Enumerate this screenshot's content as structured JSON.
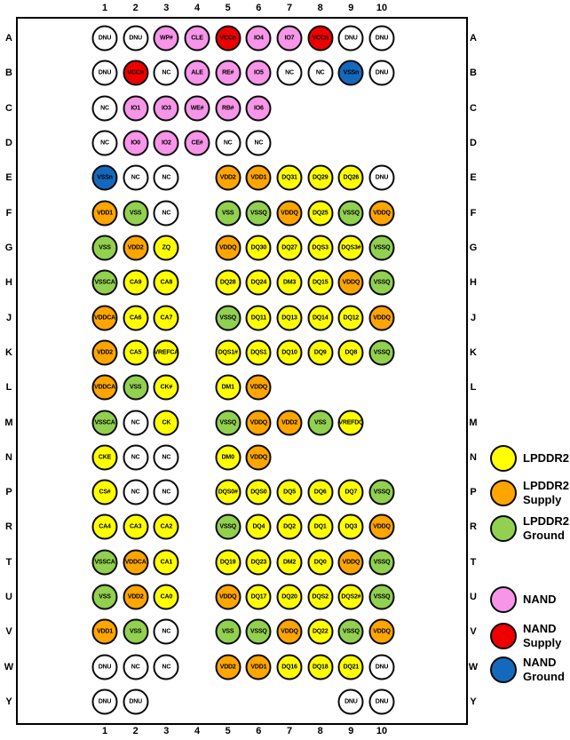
{
  "colors": {
    "lpddr2": "#FFFF00",
    "lpddr2_supply": "#FFA500",
    "lpddr2_ground": "#92D050",
    "nand": "#F795E8",
    "nand_supply": "#EE0000",
    "nand_ground": "#1569BD",
    "nc": "#FFFFFF",
    "dnu": "#FFFFFF"
  },
  "diagram": {
    "column_labels": [
      "1",
      "2",
      "3",
      "4",
      "5",
      "6",
      "7",
      "8",
      "9",
      "10"
    ],
    "rows": [
      {
        "label": "A",
        "cells": [
          {
            "name": "DNU",
            "type": "dnu"
          },
          {
            "name": "DNU",
            "type": "dnu"
          },
          {
            "name": "WP#",
            "type": "nand"
          },
          {
            "name": "CLE",
            "type": "nand"
          },
          {
            "name": "VCCn",
            "type": "nand_supply"
          },
          {
            "name": "IO4",
            "type": "nand"
          },
          {
            "name": "IO7",
            "type": "nand"
          },
          {
            "name": "VCCn",
            "type": "nand_supply"
          },
          {
            "name": "DNU",
            "type": "dnu"
          },
          {
            "name": "DNU",
            "type": "dnu"
          }
        ]
      },
      {
        "label": "B",
        "cells": [
          {
            "name": "DNU",
            "type": "dnu"
          },
          {
            "name": "VCCn",
            "type": "nand_supply"
          },
          {
            "name": "NC",
            "type": "nc"
          },
          {
            "name": "ALE",
            "type": "nand"
          },
          {
            "name": "RE#",
            "type": "nand"
          },
          {
            "name": "IO5",
            "type": "nand"
          },
          {
            "name": "NC",
            "type": "nc"
          },
          {
            "name": "NC",
            "type": "nc"
          },
          {
            "name": "VSSn",
            "type": "nand_ground"
          },
          {
            "name": "DNU",
            "type": "dnu"
          }
        ]
      },
      {
        "label": "C",
        "cells": [
          {
            "name": "NC",
            "type": "nc"
          },
          {
            "name": "IO1",
            "type": "nand"
          },
          {
            "name": "IO3",
            "type": "nand"
          },
          {
            "name": "WE#",
            "type": "nand"
          },
          {
            "name": "RB#",
            "type": "nand"
          },
          {
            "name": "IO6",
            "type": "nand"
          },
          null,
          null,
          null,
          null
        ]
      },
      {
        "label": "D",
        "cells": [
          {
            "name": "NC",
            "type": "nc"
          },
          {
            "name": "IO0",
            "type": "nand"
          },
          {
            "name": "IO2",
            "type": "nand"
          },
          {
            "name": "CE#",
            "type": "nand"
          },
          {
            "name": "NC",
            "type": "nc"
          },
          {
            "name": "NC",
            "type": "nc"
          },
          null,
          null,
          null,
          null
        ]
      },
      {
        "label": "E",
        "cells": [
          {
            "name": "VSSn",
            "type": "nand_ground"
          },
          {
            "name": "NC",
            "type": "nc"
          },
          {
            "name": "NC",
            "type": "nc"
          },
          null,
          {
            "name": "VDD2",
            "type": "lpddr2_supply"
          },
          {
            "name": "VDD1",
            "type": "lpddr2_supply"
          },
          {
            "name": "DQ31",
            "type": "lpddr2"
          },
          {
            "name": "DQ29",
            "type": "lpddr2"
          },
          {
            "name": "DQ26",
            "type": "lpddr2"
          },
          {
            "name": "DNU",
            "type": "dnu"
          }
        ]
      },
      {
        "label": "F",
        "cells": [
          {
            "name": "VDD1",
            "type": "lpddr2_supply"
          },
          {
            "name": "VSS",
            "type": "lpddr2_ground"
          },
          {
            "name": "NC",
            "type": "nc"
          },
          null,
          {
            "name": "VSS",
            "type": "lpddr2_ground"
          },
          {
            "name": "VSSQ",
            "type": "lpddr2_ground"
          },
          {
            "name": "VDDQ",
            "type": "lpddr2_supply"
          },
          {
            "name": "DQ25",
            "type": "lpddr2"
          },
          {
            "name": "VSSQ",
            "type": "lpddr2_ground"
          },
          {
            "name": "VDDQ",
            "type": "lpddr2_supply"
          }
        ]
      },
      {
        "label": "G",
        "cells": [
          {
            "name": "VSS",
            "type": "lpddr2_ground"
          },
          {
            "name": "VDD2",
            "type": "lpddr2_supply"
          },
          {
            "name": "ZQ",
            "type": "lpddr2"
          },
          null,
          {
            "name": "VDDQ",
            "type": "lpddr2_supply"
          },
          {
            "name": "DQ30",
            "type": "lpddr2"
          },
          {
            "name": "DQ27",
            "type": "lpddr2"
          },
          {
            "name": "DQS3",
            "type": "lpddr2"
          },
          {
            "name": "DQS3#",
            "type": "lpddr2"
          },
          {
            "name": "VSSQ",
            "type": "lpddr2_ground"
          }
        ]
      },
      {
        "label": "H",
        "cells": [
          {
            "name": "VSSCA",
            "type": "lpddr2_ground"
          },
          {
            "name": "CA9",
            "type": "lpddr2"
          },
          {
            "name": "CA8",
            "type": "lpddr2"
          },
          null,
          {
            "name": "DQ28",
            "type": "lpddr2"
          },
          {
            "name": "DQ24",
            "type": "lpddr2"
          },
          {
            "name": "DM3",
            "type": "lpddr2"
          },
          {
            "name": "DQ15",
            "type": "lpddr2"
          },
          {
            "name": "VDDQ",
            "type": "lpddr2_supply"
          },
          {
            "name": "VSSQ",
            "type": "lpddr2_ground"
          }
        ]
      },
      {
        "label": "J",
        "cells": [
          {
            "name": "VDDCA",
            "type": "lpddr2_supply"
          },
          {
            "name": "CA6",
            "type": "lpddr2"
          },
          {
            "name": "CA7",
            "type": "lpddr2"
          },
          null,
          {
            "name": "VSSQ",
            "type": "lpddr2_ground"
          },
          {
            "name": "DQ11",
            "type": "lpddr2"
          },
          {
            "name": "DQ13",
            "type": "lpddr2"
          },
          {
            "name": "DQ14",
            "type": "lpddr2"
          },
          {
            "name": "DQ12",
            "type": "lpddr2"
          },
          {
            "name": "VDDQ",
            "type": "lpddr2_supply"
          }
        ]
      },
      {
        "label": "K",
        "cells": [
          {
            "name": "VDD2",
            "type": "lpddr2_supply"
          },
          {
            "name": "CA5",
            "type": "lpddr2"
          },
          {
            "name": "VREFCA",
            "type": "lpddr2"
          },
          null,
          {
            "name": "DQS1#",
            "type": "lpddr2"
          },
          {
            "name": "DQS1",
            "type": "lpddr2"
          },
          {
            "name": "DQ10",
            "type": "lpddr2"
          },
          {
            "name": "DQ9",
            "type": "lpddr2"
          },
          {
            "name": "DQ8",
            "type": "lpddr2"
          },
          {
            "name": "VSSQ",
            "type": "lpddr2_ground"
          }
        ]
      },
      {
        "label": "L",
        "cells": [
          {
            "name": "VDDCA",
            "type": "lpddr2_supply"
          },
          {
            "name": "VSS",
            "type": "lpddr2_ground"
          },
          {
            "name": "CK#",
            "type": "lpddr2"
          },
          null,
          {
            "name": "DM1",
            "type": "lpddr2"
          },
          {
            "name": "VDDQ",
            "type": "lpddr2_supply"
          },
          null,
          null,
          null,
          null
        ]
      },
      {
        "label": "M",
        "cells": [
          {
            "name": "VSSCA",
            "type": "lpddr2_ground"
          },
          {
            "name": "NC",
            "type": "nc"
          },
          {
            "name": "CK",
            "type": "lpddr2"
          },
          null,
          {
            "name": "VSSQ",
            "type": "lpddr2_ground"
          },
          {
            "name": "VDDQ",
            "type": "lpddr2_supply"
          },
          {
            "name": "VDD2",
            "type": "lpddr2_supply"
          },
          {
            "name": "VSS",
            "type": "lpddr2_ground"
          },
          {
            "name": "VREFDQ",
            "type": "lpddr2"
          },
          null
        ]
      },
      {
        "label": "N",
        "cells": [
          {
            "name": "CKE",
            "type": "lpddr2"
          },
          {
            "name": "NC",
            "type": "nc"
          },
          {
            "name": "NC",
            "type": "nc"
          },
          null,
          {
            "name": "DM0",
            "type": "lpddr2"
          },
          {
            "name": "VDDQ",
            "type": "lpddr2_supply"
          },
          null,
          null,
          null,
          null
        ]
      },
      {
        "label": "P",
        "cells": [
          {
            "name": "CS#",
            "type": "lpddr2"
          },
          {
            "name": "NC",
            "type": "nc"
          },
          {
            "name": "NC",
            "type": "nc"
          },
          null,
          {
            "name": "DQS0#",
            "type": "lpddr2"
          },
          {
            "name": "DQS0",
            "type": "lpddr2"
          },
          {
            "name": "DQ5",
            "type": "lpddr2"
          },
          {
            "name": "DQ6",
            "type": "lpddr2"
          },
          {
            "name": "DQ7",
            "type": "lpddr2"
          },
          {
            "name": "VSSQ",
            "type": "lpddr2_ground"
          }
        ]
      },
      {
        "label": "R",
        "cells": [
          {
            "name": "CA4",
            "type": "lpddr2"
          },
          {
            "name": "CA3",
            "type": "lpddr2"
          },
          {
            "name": "CA2",
            "type": "lpddr2"
          },
          null,
          {
            "name": "VSSQ",
            "type": "lpddr2_ground"
          },
          {
            "name": "DQ4",
            "type": "lpddr2"
          },
          {
            "name": "DQ2",
            "type": "lpddr2"
          },
          {
            "name": "DQ1",
            "type": "lpddr2"
          },
          {
            "name": "DQ3",
            "type": "lpddr2"
          },
          {
            "name": "VDDQ",
            "type": "lpddr2_supply"
          }
        ]
      },
      {
        "label": "T",
        "cells": [
          {
            "name": "VSSCA",
            "type": "lpddr2_ground"
          },
          {
            "name": "VDDCA",
            "type": "lpddr2_supply"
          },
          {
            "name": "CA1",
            "type": "lpddr2"
          },
          null,
          {
            "name": "DQ19",
            "type": "lpddr2"
          },
          {
            "name": "DQ23",
            "type": "lpddr2"
          },
          {
            "name": "DM2",
            "type": "lpddr2"
          },
          {
            "name": "DQ0",
            "type": "lpddr2"
          },
          {
            "name": "VDDQ",
            "type": "lpddr2_supply"
          },
          {
            "name": "VSSQ",
            "type": "lpddr2_ground"
          }
        ]
      },
      {
        "label": "U",
        "cells": [
          {
            "name": "VSS",
            "type": "lpddr2_ground"
          },
          {
            "name": "VDD2",
            "type": "lpddr2_supply"
          },
          {
            "name": "CA0",
            "type": "lpddr2"
          },
          null,
          {
            "name": "VDDQ",
            "type": "lpddr2_supply"
          },
          {
            "name": "DQ17",
            "type": "lpddr2"
          },
          {
            "name": "DQ20",
            "type": "lpddr2"
          },
          {
            "name": "DQS2",
            "type": "lpddr2"
          },
          {
            "name": "DQS2#",
            "type": "lpddr2"
          },
          {
            "name": "VSSQ",
            "type": "lpddr2_ground"
          }
        ]
      },
      {
        "label": "V",
        "cells": [
          {
            "name": "VDD1",
            "type": "lpddr2_supply"
          },
          {
            "name": "VSS",
            "type": "lpddr2_ground"
          },
          {
            "name": "NC",
            "type": "nc"
          },
          null,
          {
            "name": "VSS",
            "type": "lpddr2_ground"
          },
          {
            "name": "VSSQ",
            "type": "lpddr2_ground"
          },
          {
            "name": "VDDQ",
            "type": "lpddr2_supply"
          },
          {
            "name": "DQ22",
            "type": "lpddr2"
          },
          {
            "name": "VSSQ",
            "type": "lpddr2_ground"
          },
          {
            "name": "VDDQ",
            "type": "lpddr2_supply"
          }
        ]
      },
      {
        "label": "W",
        "cells": [
          {
            "name": "DNU",
            "type": "dnu"
          },
          {
            "name": "NC",
            "type": "nc"
          },
          {
            "name": "NC",
            "type": "nc"
          },
          null,
          {
            "name": "VDD2",
            "type": "lpddr2_supply"
          },
          {
            "name": "VDD1",
            "type": "lpddr2_supply"
          },
          {
            "name": "DQ16",
            "type": "lpddr2"
          },
          {
            "name": "DQ18",
            "type": "lpddr2"
          },
          {
            "name": "DQ21",
            "type": "lpddr2"
          },
          {
            "name": "DNU",
            "type": "dnu"
          }
        ]
      },
      {
        "label": "Y",
        "cells": [
          {
            "name": "DNU",
            "type": "dnu"
          },
          {
            "name": "DNU",
            "type": "dnu"
          },
          null,
          null,
          null,
          null,
          null,
          null,
          {
            "name": "DNU",
            "type": "dnu"
          },
          {
            "name": "DNU",
            "type": "dnu"
          }
        ]
      }
    ]
  },
  "legend": [
    {
      "type": "lpddr2",
      "lines": [
        "LPDDR2"
      ]
    },
    {
      "type": "lpddr2_supply",
      "lines": [
        "LPDDR2",
        "Supply"
      ]
    },
    {
      "type": "lpddr2_ground",
      "lines": [
        "LPDDR2",
        "Ground"
      ]
    },
    {
      "type": "nand",
      "lines": [
        "NAND"
      ]
    },
    {
      "type": "nand_supply",
      "lines": [
        "NAND",
        "Supply"
      ]
    },
    {
      "type": "nand_ground",
      "lines": [
        "NAND",
        "Ground"
      ]
    }
  ]
}
